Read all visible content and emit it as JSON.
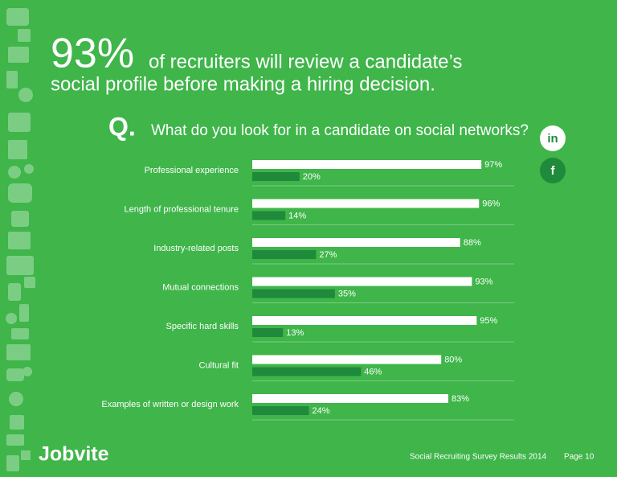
{
  "header": {
    "stat": "93%",
    "lines": [
      "of recruiters will review a candidate’s",
      "social profile before making a hiring decision."
    ]
  },
  "chart_data": {
    "type": "bar",
    "orientation": "horizontal",
    "question_marker": "Q.",
    "title": "What do you look for in a candidate on social networks?",
    "categories": [
      "Professional experience",
      "Length of professional tenure",
      "Industry-related posts",
      "Mutual connections",
      "Specific hard skills",
      "Cultural fit",
      "Examples of written or design work"
    ],
    "series": [
      {
        "name": "in",
        "color": "#ffffff",
        "values": [
          97,
          96,
          88,
          93,
          95,
          80,
          83
        ],
        "value_labels": [
          "97%",
          "96%",
          "88%",
          "93%",
          "95%",
          "80%",
          "83%"
        ]
      },
      {
        "name": "f",
        "color": "#1f8a3b",
        "values": [
          20,
          14,
          27,
          35,
          13,
          46,
          24
        ],
        "value_labels": [
          "20%",
          "14%",
          "27%",
          "35%",
          "13%",
          "46%",
          "24%"
        ]
      }
    ]
  },
  "footer": {
    "brand": "Jobvite",
    "source": "Social Recruiting Survey Results 2014",
    "page": "Page 10"
  }
}
